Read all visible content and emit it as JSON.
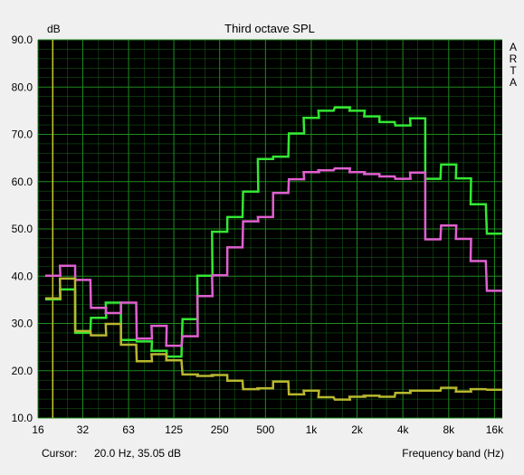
{
  "chart_data": {
    "type": "line",
    "title": "Third octave SPL",
    "ylabel": "dB",
    "xlabel": "Frequency band (Hz)",
    "ylim": [
      10,
      90
    ],
    "y_ticks": [
      "90.0",
      "80.0",
      "70.0",
      "60.0",
      "50.0",
      "40.0",
      "30.0",
      "20.0",
      "10.0"
    ],
    "x_tick_labels": [
      "16",
      "32",
      "63",
      "125",
      "250",
      "500",
      "1k",
      "2k",
      "4k",
      "8k",
      "16k"
    ],
    "x_axis_scale": "log (third-octave bands)",
    "x_bands": [
      20,
      25,
      31.5,
      40,
      50,
      63,
      80,
      100,
      125,
      160,
      200,
      250,
      315,
      400,
      500,
      630,
      800,
      1000,
      1250,
      1600,
      2000,
      2500,
      3150,
      4000,
      5000,
      6300,
      8000,
      10000,
      12500,
      16000
    ],
    "background": "#000000",
    "grid": true,
    "grid_color": "#1e8a1e",
    "series": [
      {
        "color": "#33e833",
        "values": [
          35.1,
          37.2,
          28.0,
          31.2,
          34.4,
          26.5,
          26.2,
          24.2,
          23.0,
          30.9,
          40.1,
          49.4,
          52.5,
          57.9,
          64.8,
          65.3,
          70.2,
          73.5,
          75.0,
          75.7,
          75.0,
          73.8,
          72.6,
          71.9,
          73.4,
          60.6,
          63.6,
          60.7,
          55.2,
          49.0
        ]
      },
      {
        "color": "#e060d0",
        "values": [
          40.1,
          42.2,
          39.2,
          33.3,
          32.2,
          34.4,
          26.8,
          29.5,
          25.3,
          27.3,
          35.8,
          40.2,
          46.1,
          51.6,
          52.5,
          57.6,
          60.5,
          62.0,
          62.4,
          62.8,
          62.0,
          61.6,
          61.1,
          60.6,
          61.9,
          47.8,
          50.7,
          47.9,
          43.2,
          36.9
        ]
      },
      {
        "color": "#b8b830",
        "values": [
          35.3,
          39.5,
          28.4,
          27.5,
          29.9,
          25.5,
          22.0,
          23.5,
          22.2,
          19.2,
          18.9,
          19.1,
          17.9,
          16.1,
          16.3,
          17.7,
          15.0,
          15.8,
          14.4,
          13.9,
          14.5,
          14.7,
          14.5,
          15.3,
          15.8,
          15.8,
          16.4,
          15.6,
          16.1,
          16.0
        ]
      }
    ],
    "cursor_line_hz": 20.0,
    "side_label": [
      "A",
      "R",
      "T",
      "A"
    ]
  },
  "status": {
    "cursor_label": "Cursor:",
    "cursor_value": "20.0 Hz, 35.05 dB",
    "freq_band_label": "Frequency band (Hz)"
  },
  "colors": {
    "plot_bg": "#000000",
    "grid": "#1e8a1e",
    "window_bg": "#f0f0f0",
    "cursor_line": "#c8c832"
  }
}
